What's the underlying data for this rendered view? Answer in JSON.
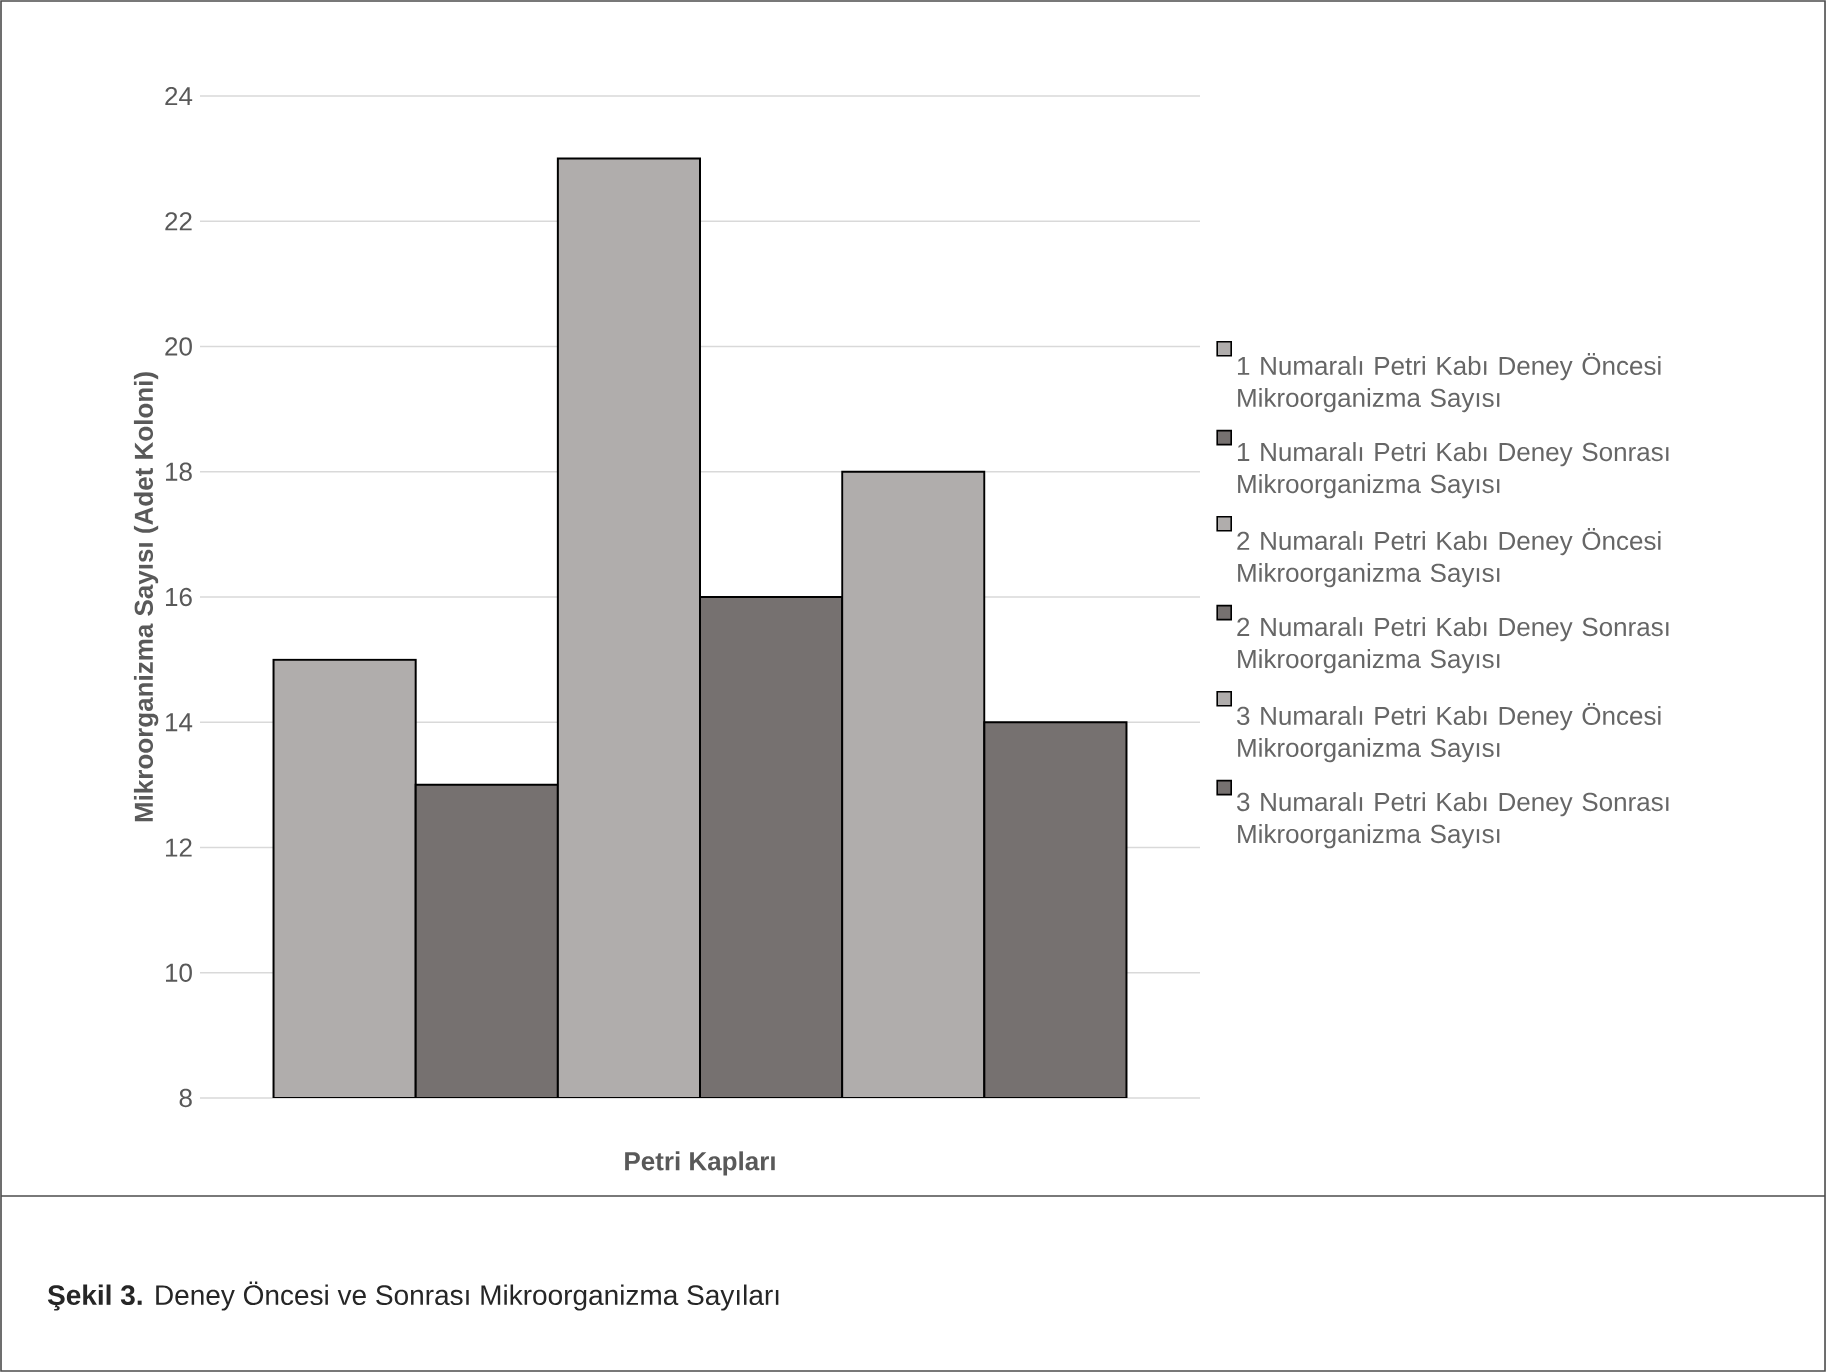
{
  "chart_data": {
    "type": "bar",
    "xlabel": "Petri Kapları",
    "ylabel": "Mikroorganizma Sayısı (Adet Koloni)",
    "categories": [
      null
    ],
    "series": [
      {
        "name": "1 Numaralı Petri Kabı Deney Öncesi Mikroorganizma Sayısı",
        "color": "#b0adac",
        "values": [
          15
        ]
      },
      {
        "name": "1 Numaralı Petri Kabı Deney Sonrası Mikroorganizma Sayısı",
        "color": "#767170",
        "values": [
          13
        ]
      },
      {
        "name": "2 Numaralı Petri Kabı Deney Öncesi Mikroorganizma Sayısı",
        "color": "#b0adac",
        "values": [
          23
        ]
      },
      {
        "name": "2 Numaralı Petri Kabı Deney Sonrası Mikroorganizma Sayısı",
        "color": "#767170",
        "values": [
          16
        ]
      },
      {
        "name": "3 Numaralı Petri Kabı Deney Öncesi Mikroorganizma Sayısı",
        "color": "#b0adac",
        "values": [
          18
        ]
      },
      {
        "name": "3 Numaralı Petri Kabı Deney Sonrası Mikroorganizma Sayısı",
        "color": "#767170",
        "values": [
          14
        ]
      }
    ],
    "ylim": [
      8,
      24
    ],
    "yticks": [
      8,
      10,
      12,
      14,
      16,
      18,
      20,
      22,
      24
    ],
    "grid": "y",
    "legend": "right",
    "annotations": [
      "**Şekil 3.** Deney Öncesi ve Sonrası Mikroorganizma Sayıları"
    ]
  }
}
